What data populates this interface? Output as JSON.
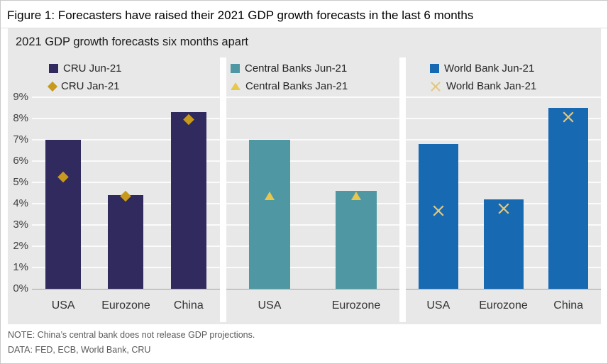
{
  "title": "Figure 1: Forecasters have raised their 2021 GDP growth forecasts in the last 6 months",
  "chart": {
    "subtitle": "2021 GDP growth forecasts six months apart"
  },
  "chart_data": {
    "type": "bar",
    "title": "2021 GDP growth forecasts six months apart",
    "ylim": [
      0,
      9
    ],
    "y_ticks": [
      "0%",
      "1%",
      "2%",
      "3%",
      "4%",
      "5%",
      "6%",
      "7%",
      "8%",
      "9%"
    ],
    "grid": true,
    "background": "#e8e8e8",
    "panels": [
      {
        "name": "CRU",
        "categories": [
          "USA",
          "Eurozone",
          "China"
        ],
        "legend_position": "top-left",
        "series": [
          {
            "name": "CRU Jun-21",
            "type": "bar",
            "marker": "square",
            "color": "#312a5e",
            "values": [
              7.0,
              4.4,
              8.3
            ]
          },
          {
            "name": "CRU Jan-21",
            "type": "point",
            "marker": "diamond",
            "color": "#c79a1e",
            "values": [
              5.1,
              4.2,
              7.8
            ]
          }
        ]
      },
      {
        "name": "Central Banks",
        "categories": [
          "USA",
          "Eurozone"
        ],
        "legend_position": "top-left",
        "series": [
          {
            "name": "Central Banks  Jun-21",
            "type": "bar",
            "marker": "square",
            "color": "#4f98a3",
            "values": [
              7.0,
              4.6
            ]
          },
          {
            "name": "Central Banks  Jan-21",
            "type": "point",
            "marker": "triangle",
            "color": "#e8c74d",
            "values": [
              4.2,
              4.2
            ]
          }
        ]
      },
      {
        "name": "World Bank",
        "categories": [
          "USA",
          "Eurozone",
          "China"
        ],
        "legend_position": "top-left",
        "series": [
          {
            "name": "World Bank  Jun-21",
            "type": "bar",
            "marker": "square",
            "color": "#1769b2",
            "values": [
              6.8,
              4.2,
              8.5
            ]
          },
          {
            "name": "World Bank  Jan-21",
            "type": "point",
            "marker": "x",
            "color": "#e4c77d",
            "values": [
              3.5,
              3.6,
              7.9
            ]
          }
        ]
      }
    ]
  },
  "footer": {
    "note": "NOTE: China’s central bank does not release GDP projections.",
    "data_source": "DATA: FED, ECB, World Bank, CRU"
  }
}
